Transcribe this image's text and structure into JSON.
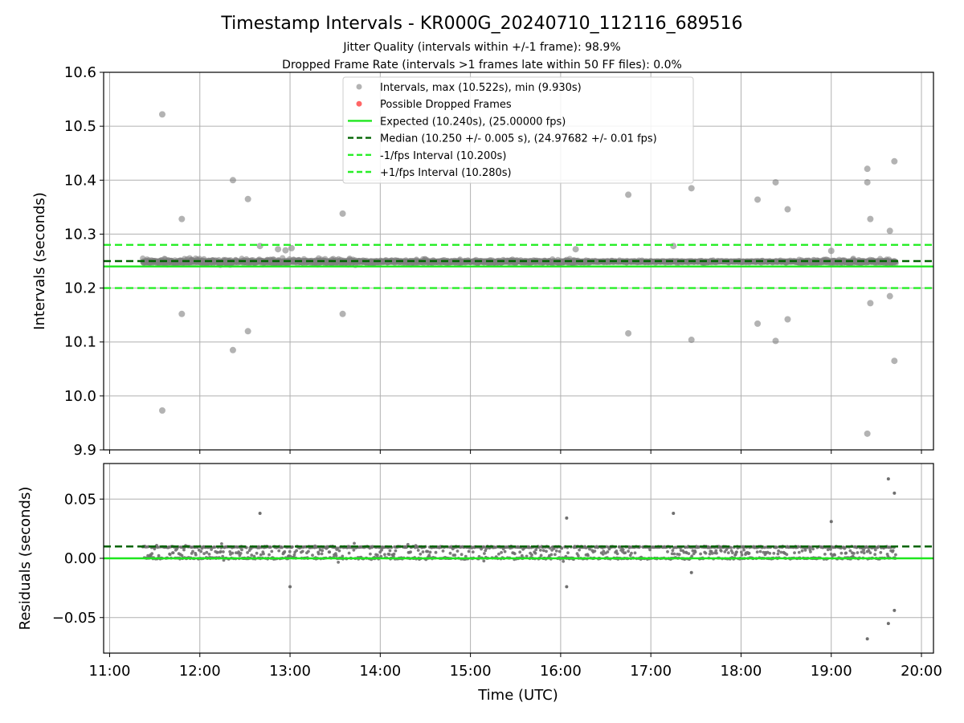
{
  "title": "Timestamp Intervals - KR000G_20240710_112116_689516",
  "subtitle_1": "Jitter Quality (intervals within +/-1 frame): 98.9%",
  "subtitle_2": "Dropped Frame Rate (intervals >1 frames late within 50 FF files): 0.0%",
  "colors": {
    "points": "#808080",
    "dropped": "#ff4040",
    "expected": "#1ee61e",
    "median": "#006400",
    "fps_band": "#28ee28",
    "grid": "#b0b0b0"
  },
  "chart_data": [
    {
      "type": "scatter",
      "panel": "intervals",
      "ylabel": "Intervals (seconds)",
      "xlabel": "",
      "ylim": [
        9.9,
        10.6
      ],
      "xlim": [
        "10:56",
        "20:08"
      ],
      "yticks": [
        "9.9",
        "10.0",
        "10.1",
        "10.2",
        "10.3",
        "10.4",
        "10.5",
        "10.6"
      ],
      "grid": true,
      "legend_position": "top-center",
      "legend": [
        {
          "kind": "marker",
          "color": "#808080",
          "label": "Intervals, max (10.522s), min (9.930s)"
        },
        {
          "kind": "marker",
          "color": "#ff4040",
          "label": "Possible Dropped Frames"
        },
        {
          "kind": "line-solid",
          "color": "#1ee61e",
          "label": "Expected (10.240s), (25.00000 fps)"
        },
        {
          "kind": "line-dashed",
          "color": "#006400",
          "label": "Median (10.250 +/- 0.005 s), (24.97682 +/- 0.01 fps)"
        },
        {
          "kind": "line-dashed",
          "color": "#28ee28",
          "label": "-1/fps Interval (10.200s)"
        },
        {
          "kind": "line-dashed",
          "color": "#28ee28",
          "label": "+1/fps Interval (10.280s)"
        }
      ],
      "reference_lines": {
        "expected": 10.24,
        "median": 10.25,
        "minus_fps": 10.2,
        "plus_fps": 10.28
      },
      "time_range": [
        "11:22",
        "19:43"
      ],
      "series": [
        {
          "name": "Intervals",
          "points": [
            [
              "11:35",
              10.522
            ],
            [
              "11:35",
              9.973
            ],
            [
              "11:48",
              10.328
            ],
            [
              "11:48",
              10.152
            ],
            [
              "12:22",
              10.4
            ],
            [
              "12:22",
              10.085
            ],
            [
              "12:32",
              10.365
            ],
            [
              "12:32",
              10.12
            ],
            [
              "13:35",
              10.338
            ],
            [
              "13:35",
              10.152
            ],
            [
              "16:45",
              10.373
            ],
            [
              "16:45",
              10.116
            ],
            [
              "17:27",
              10.385
            ],
            [
              "17:27",
              10.104
            ],
            [
              "18:11",
              10.364
            ],
            [
              "18:11",
              10.134
            ],
            [
              "18:23",
              10.396
            ],
            [
              "18:23",
              10.102
            ],
            [
              "18:31",
              10.346
            ],
            [
              "18:31",
              10.142
            ],
            [
              "19:24",
              10.421
            ],
            [
              "19:24",
              10.396
            ],
            [
              "19:24",
              9.93
            ],
            [
              "19:26",
              10.328
            ],
            [
              "19:26",
              10.172
            ],
            [
              "19:39",
              10.306
            ],
            [
              "19:39",
              10.185
            ],
            [
              "19:42",
              10.435
            ],
            [
              "19:42",
              10.065
            ],
            [
              "12:40",
              10.278
            ],
            [
              "12:52",
              10.272
            ],
            [
              "12:57",
              10.27
            ],
            [
              "13:01",
              10.274
            ],
            [
              "16:10",
              10.272
            ],
            [
              "17:15",
              10.278
            ],
            [
              "19:00",
              10.269
            ]
          ]
        }
      ]
    },
    {
      "type": "scatter",
      "panel": "residuals",
      "ylabel": "Residuals (seconds)",
      "xlabel": "Time (UTC)",
      "ylim": [
        -0.08,
        0.08
      ],
      "yticks": [
        "−0.05",
        "0.00",
        "0.05"
      ],
      "xticks": [
        "11:00",
        "12:00",
        "13:00",
        "14:00",
        "15:00",
        "16:00",
        "17:00",
        "18:00",
        "19:00",
        "20:00"
      ],
      "grid": true,
      "reference_lines": {
        "zero": 0.0,
        "median": 0.01
      },
      "series": [
        {
          "name": "Residuals",
          "points": [
            [
              "19:38",
              0.067
            ],
            [
              "19:42",
              0.055
            ],
            [
              "19:42",
              -0.044
            ],
            [
              "19:38",
              -0.055
            ],
            [
              "19:24",
              -0.068
            ],
            [
              "16:04",
              -0.024
            ],
            [
              "13:00",
              -0.024
            ],
            [
              "17:27",
              -0.012
            ],
            [
              "12:40",
              0.038
            ],
            [
              "17:15",
              0.038
            ],
            [
              "16:04",
              0.034
            ],
            [
              "19:00",
              0.031
            ]
          ]
        }
      ]
    }
  ]
}
